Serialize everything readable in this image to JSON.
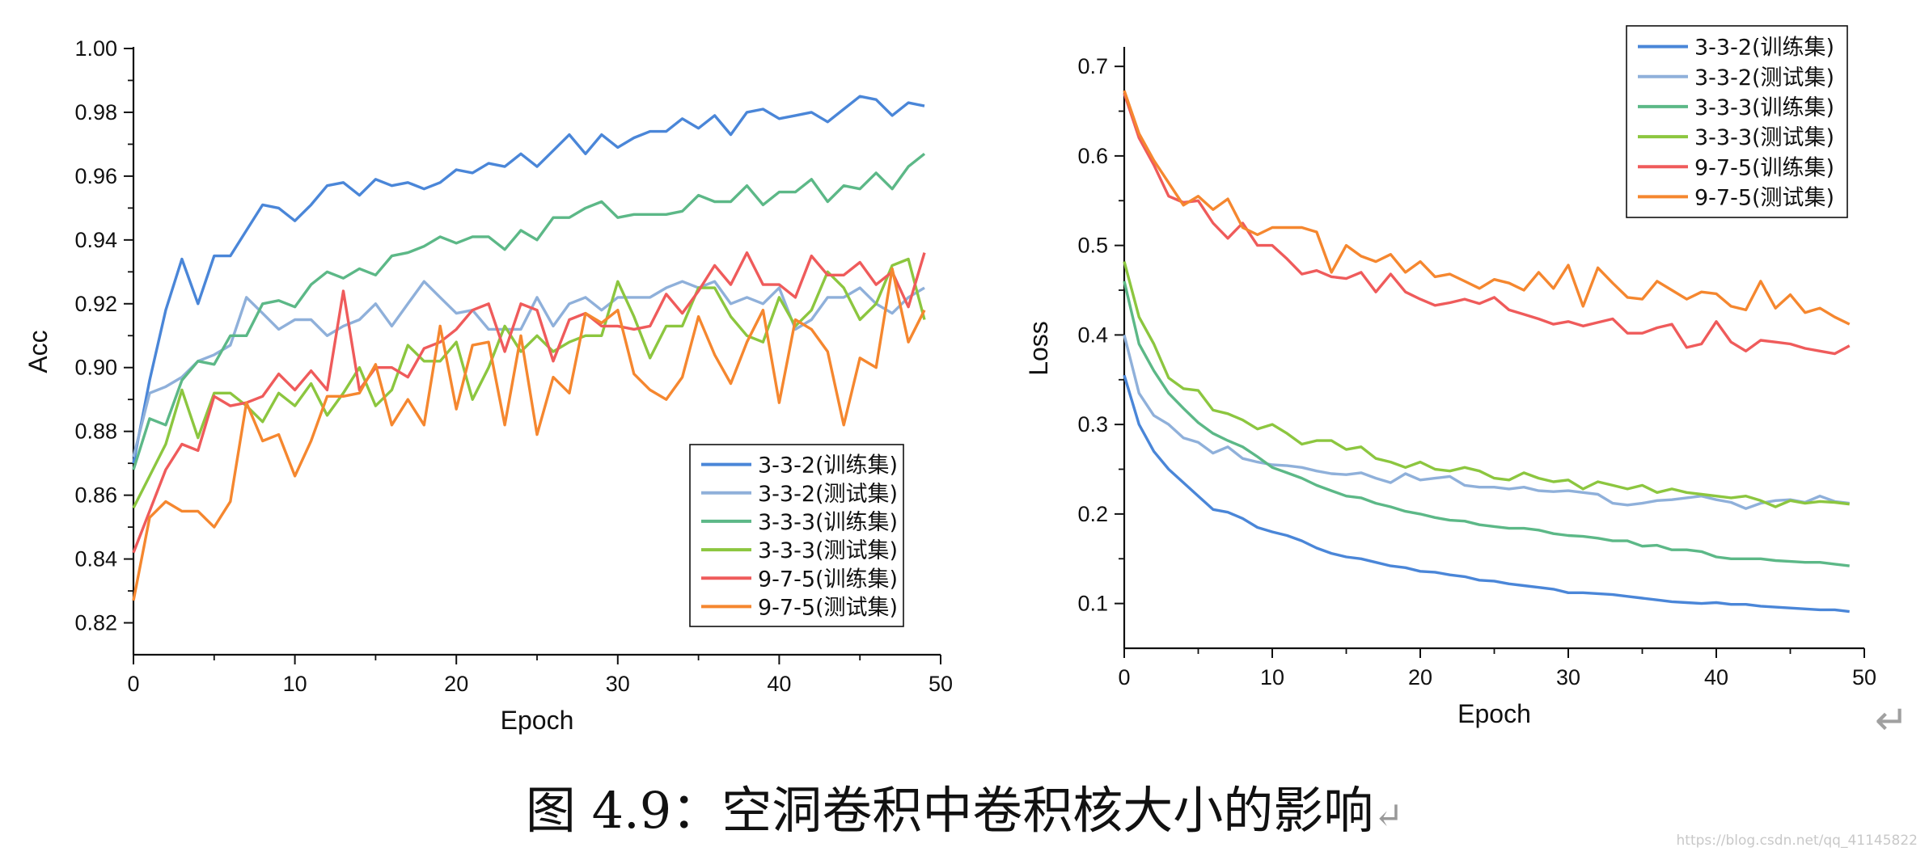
{
  "chart_data": [
    {
      "type": "line",
      "xlabel": "Epoch",
      "ylabel": "Acc",
      "xlim": [
        0,
        50
      ],
      "ylim": [
        0.81,
        1.0
      ],
      "xticks": [
        "0",
        "10",
        "20",
        "30",
        "40",
        "50"
      ],
      "yticks": [
        "0.82",
        "0.84",
        "0.86",
        "0.88",
        "0.90",
        "0.92",
        "0.94",
        "0.96",
        "0.98",
        "1.00"
      ],
      "legend_position": "bottom-right",
      "grid": false,
      "x": [
        0,
        1,
        2,
        3,
        4,
        5,
        6,
        7,
        8,
        9,
        10,
        11,
        12,
        13,
        14,
        15,
        16,
        17,
        18,
        19,
        20,
        21,
        22,
        23,
        24,
        25,
        26,
        27,
        28,
        29,
        30,
        31,
        32,
        33,
        34,
        35,
        36,
        37,
        38,
        39,
        40,
        41,
        42,
        43,
        44,
        45,
        46,
        47,
        48,
        49
      ],
      "series": [
        {
          "name": "3-3-2(训练集)",
          "color": "#4a86d8",
          "values": [
            0.87,
            0.896,
            0.918,
            0.934,
            0.92,
            0.935,
            0.935,
            0.943,
            0.951,
            0.95,
            0.946,
            0.951,
            0.957,
            0.958,
            0.954,
            0.959,
            0.957,
            0.958,
            0.956,
            0.958,
            0.962,
            0.961,
            0.964,
            0.963,
            0.967,
            0.963,
            0.968,
            0.973,
            0.967,
            0.973,
            0.969,
            0.972,
            0.974,
            0.974,
            0.978,
            0.975,
            0.979,
            0.973,
            0.98,
            0.981,
            0.978,
            0.979,
            0.98,
            0.977,
            0.981,
            0.985,
            0.984,
            0.979,
            0.983,
            0.982
          ]
        },
        {
          "name": "3-3-2(测试集)",
          "color": "#8fb0da",
          "values": [
            0.872,
            0.892,
            0.894,
            0.897,
            0.902,
            0.904,
            0.907,
            0.922,
            0.917,
            0.912,
            0.915,
            0.915,
            0.91,
            0.913,
            0.915,
            0.92,
            0.913,
            0.92,
            0.927,
            0.922,
            0.917,
            0.918,
            0.912,
            0.912,
            0.912,
            0.922,
            0.913,
            0.92,
            0.922,
            0.918,
            0.922,
            0.922,
            0.922,
            0.925,
            0.927,
            0.925,
            0.927,
            0.92,
            0.922,
            0.92,
            0.925,
            0.912,
            0.915,
            0.922,
            0.922,
            0.925,
            0.92,
            0.917,
            0.922,
            0.925
          ]
        },
        {
          "name": "3-3-3(训练集)",
          "color": "#5cb887",
          "values": [
            0.868,
            0.884,
            0.882,
            0.896,
            0.902,
            0.901,
            0.91,
            0.91,
            0.92,
            0.921,
            0.919,
            0.926,
            0.93,
            0.928,
            0.931,
            0.929,
            0.935,
            0.936,
            0.938,
            0.941,
            0.939,
            0.941,
            0.941,
            0.937,
            0.943,
            0.94,
            0.947,
            0.947,
            0.95,
            0.952,
            0.947,
            0.948,
            0.948,
            0.948,
            0.949,
            0.954,
            0.952,
            0.952,
            0.957,
            0.951,
            0.955,
            0.955,
            0.959,
            0.952,
            0.957,
            0.956,
            0.961,
            0.956,
            0.963,
            0.967
          ]
        },
        {
          "name": "3-3-3(测试集)",
          "color": "#8cc63f",
          "values": [
            0.856,
            0.866,
            0.876,
            0.893,
            0.878,
            0.892,
            0.892,
            0.888,
            0.883,
            0.892,
            0.888,
            0.895,
            0.885,
            0.892,
            0.9,
            0.888,
            0.893,
            0.907,
            0.902,
            0.902,
            0.908,
            0.89,
            0.9,
            0.913,
            0.905,
            0.91,
            0.905,
            0.908,
            0.91,
            0.91,
            0.927,
            0.916,
            0.903,
            0.913,
            0.913,
            0.925,
            0.925,
            0.916,
            0.91,
            0.908,
            0.922,
            0.913,
            0.918,
            0.93,
            0.925,
            0.915,
            0.92,
            0.932,
            0.934,
            0.915
          ]
        },
        {
          "name": "9-7-5(训练集)",
          "color": "#ef5b5b",
          "values": [
            0.842,
            0.855,
            0.868,
            0.876,
            0.874,
            0.891,
            0.888,
            0.889,
            0.891,
            0.898,
            0.893,
            0.899,
            0.893,
            0.924,
            0.893,
            0.9,
            0.9,
            0.897,
            0.906,
            0.908,
            0.912,
            0.918,
            0.92,
            0.905,
            0.92,
            0.918,
            0.902,
            0.915,
            0.917,
            0.913,
            0.913,
            0.912,
            0.913,
            0.923,
            0.917,
            0.924,
            0.932,
            0.926,
            0.936,
            0.926,
            0.926,
            0.922,
            0.935,
            0.929,
            0.929,
            0.933,
            0.926,
            0.93,
            0.919,
            0.936
          ]
        },
        {
          "name": "9-7-5(测试集)",
          "color": "#f5872f",
          "values": [
            0.827,
            0.853,
            0.858,
            0.855,
            0.855,
            0.85,
            0.858,
            0.889,
            0.877,
            0.879,
            0.866,
            0.877,
            0.891,
            0.891,
            0.892,
            0.901,
            0.882,
            0.89,
            0.882,
            0.913,
            0.887,
            0.907,
            0.908,
            0.882,
            0.91,
            0.879,
            0.897,
            0.892,
            0.917,
            0.914,
            0.918,
            0.898,
            0.893,
            0.89,
            0.897,
            0.916,
            0.904,
            0.895,
            0.908,
            0.918,
            0.889,
            0.915,
            0.912,
            0.905,
            0.882,
            0.903,
            0.9,
            0.931,
            0.908,
            0.918
          ]
        }
      ]
    },
    {
      "type": "line",
      "xlabel": "Epoch",
      "ylabel": "Loss",
      "xlim": [
        0,
        50
      ],
      "ylim": [
        0.05,
        0.72
      ],
      "xticks": [
        "0",
        "10",
        "20",
        "30",
        "40",
        "50"
      ],
      "yticks": [
        "0.1",
        "0.2",
        "0.3",
        "0.4",
        "0.5",
        "0.6",
        "0.7"
      ],
      "legend_position": "top-right",
      "grid": false,
      "x": [
        0,
        1,
        2,
        3,
        4,
        5,
        6,
        7,
        8,
        9,
        10,
        11,
        12,
        13,
        14,
        15,
        16,
        17,
        18,
        19,
        20,
        21,
        22,
        23,
        24,
        25,
        26,
        27,
        28,
        29,
        30,
        31,
        32,
        33,
        34,
        35,
        36,
        37,
        38,
        39,
        40,
        41,
        42,
        43,
        44,
        45,
        46,
        47,
        48,
        49
      ],
      "series": [
        {
          "name": "3-3-2(训练集)",
          "color": "#4a86d8",
          "values": [
            0.355,
            0.3,
            0.27,
            0.25,
            0.235,
            0.22,
            0.205,
            0.202,
            0.195,
            0.185,
            0.18,
            0.176,
            0.17,
            0.162,
            0.156,
            0.152,
            0.15,
            0.146,
            0.142,
            0.14,
            0.136,
            0.135,
            0.132,
            0.13,
            0.126,
            0.125,
            0.122,
            0.12,
            0.118,
            0.116,
            0.112,
            0.112,
            0.111,
            0.11,
            0.108,
            0.106,
            0.104,
            0.102,
            0.101,
            0.1,
            0.101,
            0.099,
            0.099,
            0.097,
            0.096,
            0.095,
            0.094,
            0.093,
            0.093,
            0.091
          ]
        },
        {
          "name": "3-3-2(测试集)",
          "color": "#8fb0da",
          "values": [
            0.4,
            0.335,
            0.31,
            0.3,
            0.285,
            0.28,
            0.268,
            0.275,
            0.262,
            0.258,
            0.255,
            0.254,
            0.252,
            0.248,
            0.245,
            0.244,
            0.246,
            0.24,
            0.235,
            0.245,
            0.238,
            0.24,
            0.242,
            0.232,
            0.23,
            0.23,
            0.228,
            0.23,
            0.226,
            0.225,
            0.226,
            0.224,
            0.222,
            0.212,
            0.21,
            0.212,
            0.215,
            0.216,
            0.218,
            0.22,
            0.216,
            0.213,
            0.206,
            0.212,
            0.215,
            0.216,
            0.213,
            0.22,
            0.214,
            0.212
          ]
        },
        {
          "name": "3-3-3(训练集)",
          "color": "#5cb887",
          "values": [
            0.46,
            0.39,
            0.36,
            0.335,
            0.318,
            0.302,
            0.29,
            0.282,
            0.275,
            0.264,
            0.252,
            0.246,
            0.24,
            0.232,
            0.226,
            0.22,
            0.218,
            0.212,
            0.208,
            0.203,
            0.2,
            0.196,
            0.193,
            0.192,
            0.188,
            0.186,
            0.184,
            0.184,
            0.182,
            0.178,
            0.176,
            0.175,
            0.173,
            0.17,
            0.17,
            0.164,
            0.165,
            0.16,
            0.16,
            0.158,
            0.152,
            0.15,
            0.15,
            0.15,
            0.148,
            0.147,
            0.146,
            0.146,
            0.144,
            0.142
          ]
        },
        {
          "name": "3-3-3(测试集)",
          "color": "#8cc63f",
          "values": [
            0.482,
            0.42,
            0.39,
            0.352,
            0.34,
            0.338,
            0.316,
            0.312,
            0.305,
            0.295,
            0.3,
            0.29,
            0.278,
            0.282,
            0.282,
            0.272,
            0.275,
            0.262,
            0.258,
            0.252,
            0.258,
            0.25,
            0.248,
            0.252,
            0.248,
            0.24,
            0.238,
            0.246,
            0.24,
            0.236,
            0.238,
            0.228,
            0.236,
            0.232,
            0.228,
            0.232,
            0.224,
            0.228,
            0.224,
            0.222,
            0.22,
            0.218,
            0.22,
            0.215,
            0.208,
            0.215,
            0.212,
            0.214,
            0.213,
            0.211
          ]
        },
        {
          "name": "9-7-5(训练集)",
          "color": "#ef5b5b",
          "values": [
            0.67,
            0.62,
            0.59,
            0.555,
            0.548,
            0.55,
            0.525,
            0.508,
            0.525,
            0.5,
            0.5,
            0.485,
            0.468,
            0.472,
            0.465,
            0.463,
            0.47,
            0.448,
            0.468,
            0.448,
            0.44,
            0.433,
            0.436,
            0.44,
            0.435,
            0.442,
            0.428,
            0.423,
            0.418,
            0.412,
            0.415,
            0.41,
            0.414,
            0.418,
            0.402,
            0.402,
            0.408,
            0.412,
            0.386,
            0.39,
            0.415,
            0.392,
            0.382,
            0.394,
            0.392,
            0.39,
            0.385,
            0.382,
            0.379,
            0.388
          ]
        },
        {
          "name": "9-7-5(测试集)",
          "color": "#f5872f",
          "values": [
            0.673,
            0.625,
            0.595,
            0.57,
            0.545,
            0.555,
            0.54,
            0.552,
            0.52,
            0.512,
            0.52,
            0.52,
            0.52,
            0.515,
            0.47,
            0.5,
            0.488,
            0.482,
            0.49,
            0.47,
            0.482,
            0.465,
            0.468,
            0.46,
            0.452,
            0.462,
            0.458,
            0.45,
            0.47,
            0.452,
            0.478,
            0.432,
            0.475,
            0.458,
            0.442,
            0.44,
            0.46,
            0.45,
            0.44,
            0.448,
            0.446,
            0.432,
            0.428,
            0.46,
            0.43,
            0.445,
            0.425,
            0.43,
            0.42,
            0.412
          ]
        }
      ]
    }
  ],
  "caption": {
    "text": "图 4.9：空洞卷积中卷积核大小的影响",
    "return_mark": "↵"
  },
  "return_mark_right": "↵",
  "watermark": "https://blog.csdn.net/qq_41145822"
}
